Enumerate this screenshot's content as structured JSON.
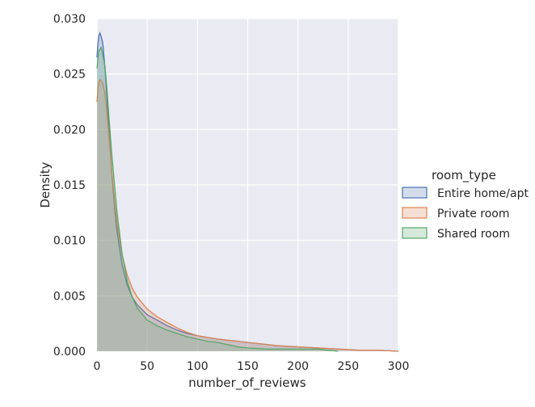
{
  "chart_data": {
    "type": "area",
    "xlabel": "number_of_reviews",
    "ylabel": "Density",
    "xlim": [
      0,
      300
    ],
    "ylim": [
      0,
      0.03
    ],
    "x_ticks": [
      "0",
      "50",
      "100",
      "150",
      "200",
      "250",
      "300"
    ],
    "y_ticks": [
      "0.000",
      "0.005",
      "0.010",
      "0.015",
      "0.020",
      "0.025",
      "0.030"
    ],
    "grid": true,
    "background": "#eaeaf2",
    "legend": {
      "title": "room_type",
      "placement": "right"
    },
    "series": [
      {
        "name": "Entire home/apt",
        "color": "#4c72b0",
        "x": [
          0,
          1,
          2,
          3,
          4,
          5,
          6,
          8,
          10,
          12,
          15,
          18,
          20,
          25,
          30,
          35,
          40,
          50,
          60,
          70,
          80,
          90,
          100,
          120,
          140,
          160,
          180,
          200,
          220,
          240,
          260,
          280,
          300
        ],
        "y": [
          0.0265,
          0.0278,
          0.0285,
          0.0287,
          0.0284,
          0.0281,
          0.0276,
          0.0255,
          0.0228,
          0.0198,
          0.0158,
          0.0125,
          0.0108,
          0.0078,
          0.006,
          0.0049,
          0.0042,
          0.0033,
          0.0028,
          0.0023,
          0.0019,
          0.0016,
          0.0014,
          0.0011,
          0.0009,
          0.0007,
          0.0005,
          0.0004,
          0.0003,
          0.0002,
          0.0001,
          0.0001,
          0.0
        ]
      },
      {
        "name": "Private room",
        "color": "#dd8452",
        "x": [
          0,
          1,
          2,
          3,
          4,
          5,
          6,
          8,
          10,
          12,
          15,
          18,
          20,
          25,
          30,
          35,
          40,
          50,
          60,
          70,
          80,
          90,
          100,
          120,
          140,
          160,
          180,
          200,
          220,
          240,
          260,
          280,
          300
        ],
        "y": [
          0.0225,
          0.0237,
          0.0243,
          0.0245,
          0.0244,
          0.0243,
          0.0241,
          0.0232,
          0.0215,
          0.0193,
          0.016,
          0.0131,
          0.0115,
          0.0087,
          0.0069,
          0.0057,
          0.0049,
          0.0038,
          0.0031,
          0.0026,
          0.0021,
          0.0017,
          0.0014,
          0.0011,
          0.0009,
          0.0007,
          0.0005,
          0.0004,
          0.0003,
          0.0002,
          0.0001,
          0.0001,
          0.0
        ]
      },
      {
        "name": "Shared room",
        "color": "#55a868",
        "x": [
          0,
          1,
          2,
          3,
          4,
          5,
          6,
          8,
          10,
          12,
          15,
          18,
          20,
          25,
          30,
          35,
          40,
          50,
          60,
          70,
          80,
          90,
          100,
          110,
          120,
          130,
          140,
          150,
          160,
          170,
          180,
          190,
          200,
          210,
          220,
          230,
          240
        ],
        "y": [
          0.0255,
          0.0265,
          0.0271,
          0.0272,
          0.0274,
          0.0271,
          0.0266,
          0.0257,
          0.0236,
          0.021,
          0.0175,
          0.0145,
          0.0125,
          0.0088,
          0.0064,
          0.0049,
          0.0039,
          0.0028,
          0.0023,
          0.0019,
          0.0016,
          0.0013,
          0.0011,
          0.0009,
          0.0008,
          0.0006,
          0.0004,
          0.0003,
          0.00025,
          0.0002,
          0.0002,
          0.0002,
          0.0002,
          0.0002,
          0.0002,
          0.0001,
          0.0
        ]
      }
    ]
  }
}
